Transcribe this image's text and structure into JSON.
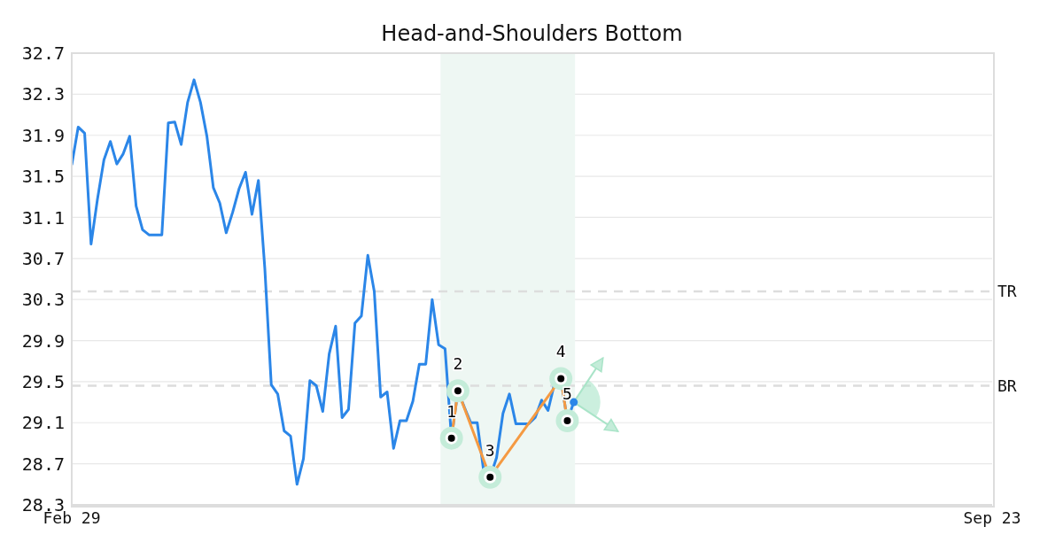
{
  "chart_data": {
    "type": "line",
    "title": "Head-and-Shoulders Bottom",
    "categories": [
      "Feb 29",
      null,
      null,
      null,
      null,
      null,
      null,
      null,
      null,
      null,
      null,
      null,
      null,
      null,
      null,
      null,
      null,
      null,
      null,
      null,
      null,
      null,
      null,
      null,
      null,
      null,
      null,
      null,
      null,
      null,
      null,
      null,
      null,
      null,
      null,
      null,
      null,
      null,
      null,
      null,
      null,
      null,
      null,
      null,
      null,
      null,
      null,
      null,
      null,
      null,
      null,
      null,
      null,
      null,
      null,
      null,
      null,
      null,
      null,
      null,
      null,
      null,
      null,
      null,
      null,
      null,
      null,
      null,
      null,
      null,
      null,
      null,
      null,
      null,
      null,
      null,
      null,
      null,
      null,
      null,
      null,
      null,
      null,
      null,
      null,
      null,
      null,
      null,
      null,
      null,
      null,
      null,
      null,
      null,
      null,
      null,
      null,
      null,
      null,
      null,
      null,
      null,
      null,
      null,
      null,
      null,
      null,
      null,
      null,
      null,
      null,
      null,
      null,
      null,
      null,
      null,
      null,
      null,
      null,
      null,
      null,
      null,
      null,
      null,
      null,
      null,
      null,
      null,
      null,
      null,
      null,
      null,
      null,
      null,
      null,
      null,
      null,
      null,
      null,
      null,
      null,
      null,
      null,
      "Sep 23"
    ],
    "ylim": [
      28.3,
      32.7
    ],
    "yticks": [
      28.3,
      28.7,
      29.1,
      29.5,
      29.9,
      30.3,
      30.7,
      31.1,
      31.5,
      31.9,
      32.3,
      32.7
    ],
    "grid": "y",
    "legend": false,
    "marker": "none",
    "line_style": "solid",
    "series": [
      {
        "color": "#2b86e8",
        "values": [
          31.61,
          31.98,
          31.92,
          30.84,
          31.28,
          31.66,
          31.84,
          31.62,
          31.72,
          31.89,
          31.21,
          30.98,
          30.93,
          30.93,
          30.93,
          32.02,
          32.03,
          31.81,
          32.22,
          32.44,
          32.22,
          31.89,
          31.39,
          31.24,
          30.95,
          31.15,
          31.38,
          31.54,
          31.13,
          31.46,
          30.6,
          29.47,
          29.38,
          29.02,
          28.97,
          28.5,
          28.75,
          29.51,
          29.46,
          29.21,
          29.77,
          30.04,
          29.15,
          29.23,
          30.07,
          30.14,
          30.73,
          30.38,
          29.35,
          29.4,
          28.85,
          29.12,
          29.12,
          29.31,
          29.67,
          29.67,
          30.3,
          29.86,
          29.82,
          28.95,
          29.41,
          29.25,
          29.1,
          29.1,
          28.63,
          28.57,
          28.76,
          29.19,
          29.38,
          29.09,
          29.09,
          29.09,
          29.15,
          29.32,
          29.22,
          29.48,
          29.53,
          29.12,
          29.3,
          null,
          null,
          null,
          null,
          null,
          null,
          null,
          null,
          null,
          null,
          null,
          null,
          null,
          null,
          null,
          null,
          null,
          null,
          null,
          null,
          null,
          null,
          null,
          null,
          null,
          null,
          null,
          null,
          null,
          null,
          null,
          null,
          null,
          null,
          null,
          null,
          null,
          null,
          null,
          null,
          null,
          null,
          null,
          null,
          null,
          null,
          null,
          null,
          null,
          null,
          null,
          null,
          null,
          null,
          null,
          null,
          null,
          null,
          null,
          null,
          null,
          null,
          null,
          null,
          null
        ]
      },
      {
        "type": "line",
        "color": "#f59a42",
        "marker": "circle",
        "values": [
          null,
          null,
          null,
          null,
          null,
          null,
          null,
          null,
          null,
          null,
          null,
          null,
          null,
          null,
          null,
          null,
          null,
          null,
          null,
          null,
          null,
          null,
          null,
          null,
          null,
          null,
          null,
          null,
          null,
          null,
          null,
          null,
          null,
          null,
          null,
          null,
          null,
          null,
          null,
          null,
          null,
          null,
          null,
          null,
          null,
          null,
          null,
          null,
          null,
          null,
          null,
          null,
          null,
          null,
          null,
          null,
          null,
          null,
          null,
          28.95,
          29.41,
          null,
          null,
          null,
          null,
          28.57,
          null,
          null,
          null,
          null,
          null,
          null,
          null,
          null,
          null,
          null,
          29.53,
          29.12,
          null,
          null,
          null,
          null,
          null,
          null,
          null,
          null,
          null,
          null,
          null,
          null,
          null,
          null,
          null,
          null,
          null,
          null,
          null,
          null,
          null,
          null,
          null,
          null,
          null,
          null,
          null,
          null,
          null,
          null,
          null,
          null,
          null,
          null,
          null,
          null,
          null,
          null,
          null,
          null,
          null,
          null,
          null,
          null,
          null,
          null,
          null,
          null,
          null,
          null,
          null,
          null,
          null,
          null,
          null,
          null,
          null,
          null,
          null,
          null,
          null,
          null,
          null,
          null,
          null,
          null
        ]
      },
      {
        "type": "scatter",
        "color": "#2b86e8",
        "marker": "circle",
        "values": [
          null,
          null,
          null,
          null,
          null,
          null,
          null,
          null,
          null,
          null,
          null,
          null,
          null,
          null,
          null,
          null,
          null,
          null,
          null,
          null,
          null,
          null,
          null,
          null,
          null,
          null,
          null,
          null,
          null,
          null,
          null,
          null,
          null,
          null,
          null,
          null,
          null,
          null,
          null,
          null,
          null,
          null,
          null,
          null,
          null,
          null,
          null,
          null,
          null,
          null,
          null,
          null,
          null,
          null,
          null,
          null,
          null,
          null,
          null,
          null,
          null,
          null,
          null,
          null,
          null,
          null,
          null,
          null,
          null,
          null,
          null,
          null,
          null,
          null,
          null,
          null,
          null,
          null,
          29.3,
          null,
          null,
          null,
          null,
          null,
          null,
          null,
          null,
          null,
          null,
          null,
          null,
          null,
          null,
          null,
          null,
          null,
          null,
          null,
          null,
          null,
          null,
          null,
          null,
          null,
          null,
          null,
          null,
          null,
          null,
          null,
          null,
          null,
          null,
          null,
          null,
          null,
          null,
          null,
          null,
          null,
          null,
          null,
          null,
          null,
          null,
          null,
          null,
          null,
          null,
          null,
          null,
          null,
          null,
          null,
          null,
          null,
          null,
          null,
          null,
          null,
          null,
          null,
          null,
          null
        ]
      }
    ],
    "ref_lines": [
      {
        "axis": "y",
        "value": 30.38,
        "label": "TR",
        "color": "#dddddd",
        "line_style": "dashed"
      },
      {
        "axis": "y",
        "value": 29.46,
        "label": "BR",
        "color": "#dddddd",
        "line_style": "dashed"
      }
    ],
    "annotations": [
      "1",
      "2",
      "3",
      "4",
      "5"
    ]
  }
}
